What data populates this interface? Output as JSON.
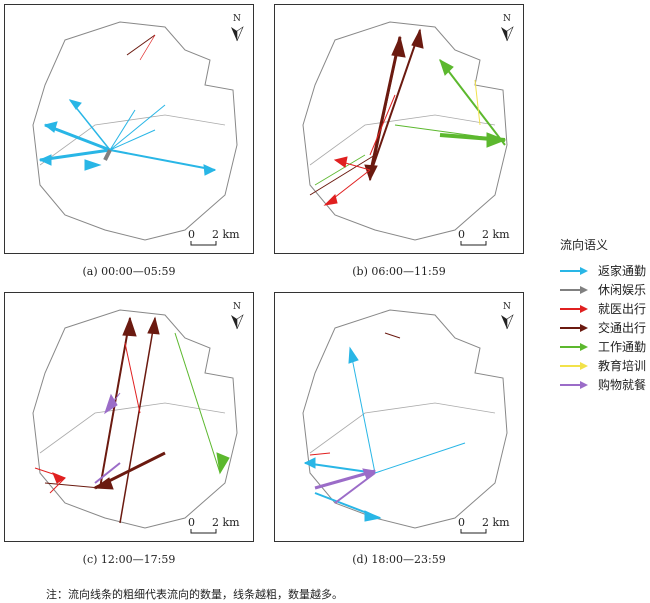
{
  "panels": [
    {
      "id": "a",
      "caption": "(a)  00:00—05:59"
    },
    {
      "id": "b",
      "caption": "(b)  06:00—11:59"
    },
    {
      "id": "c",
      "caption": "(c)  12:00—17:59"
    },
    {
      "id": "d",
      "caption": "(d)  18:00—23:59"
    }
  ],
  "scale": {
    "zero": "0",
    "label": "2 km"
  },
  "north_label": "N",
  "legend": {
    "title": "流向语义",
    "items": [
      {
        "label": "返家通勤",
        "color": "#29b6e6"
      },
      {
        "label": "休闲娱乐",
        "color": "#808080"
      },
      {
        "label": "就医出行",
        "color": "#e02020"
      },
      {
        "label": "交通出行",
        "color": "#6b1a10"
      },
      {
        "label": "工作通勤",
        "color": "#5cb82e"
      },
      {
        "label": "教育培训",
        "color": "#f2e24a"
      },
      {
        "label": "购物就餐",
        "color": "#9b6cc8"
      }
    ]
  },
  "note": "注：流向线条的粗细代表流向的数量，线条越粗，数量越多。"
}
